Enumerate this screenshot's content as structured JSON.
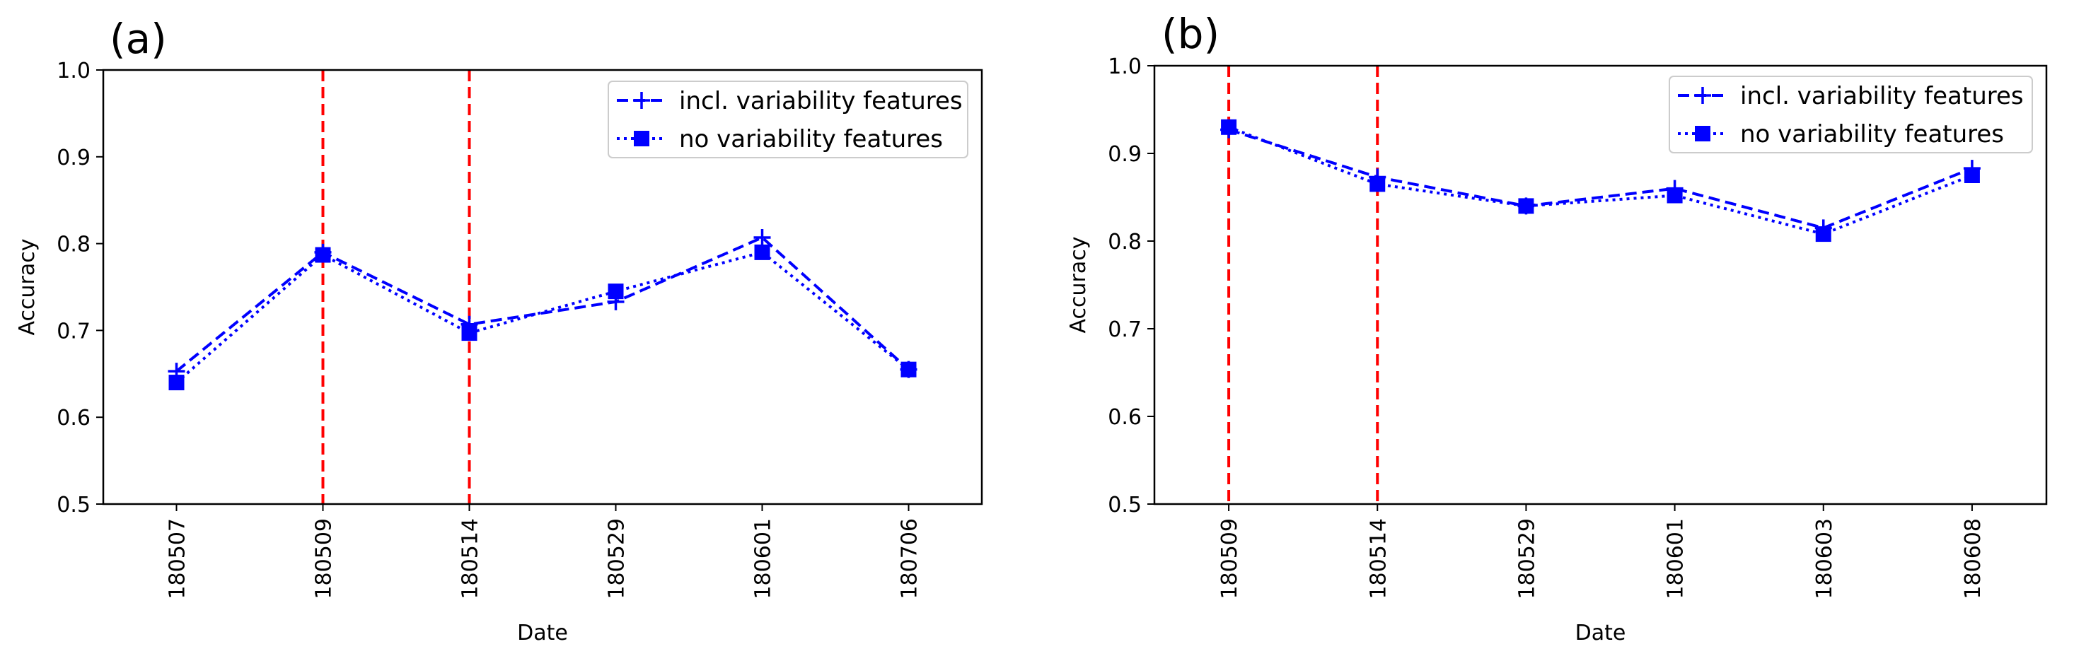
{
  "colors": {
    "series": "#0000ff",
    "vline": "#ff0000",
    "axis": "#000000",
    "background": "#ffffff"
  },
  "chart_data": [
    {
      "type": "line",
      "panel_label": "(a)",
      "xlabel": "Date",
      "ylabel": "Accuracy",
      "ylim": [
        0.5,
        1.0
      ],
      "yticks": [
        "0.5",
        "0.6",
        "0.7",
        "0.8",
        "0.9",
        "1.0"
      ],
      "categories": [
        "180507",
        "180509",
        "180514",
        "180529",
        "180601",
        "180706"
      ],
      "vertical_lines_at": [
        "180509",
        "180514"
      ],
      "legend_position": "top-right",
      "series": [
        {
          "name": "incl. variability features",
          "linestyle": "dashed",
          "marker": "plus",
          "values": [
            0.653,
            0.79,
            0.707,
            0.733,
            0.807,
            0.655
          ]
        },
        {
          "name": "no variability features",
          "linestyle": "dotted",
          "marker": "square",
          "values": [
            0.64,
            0.787,
            0.697,
            0.745,
            0.79,
            0.655
          ]
        }
      ]
    },
    {
      "type": "line",
      "panel_label": "(b)",
      "xlabel": "Date",
      "ylabel": "Accuracy",
      "ylim": [
        0.5,
        1.0
      ],
      "yticks": [
        "0.5",
        "0.6",
        "0.7",
        "0.8",
        "0.9",
        "1.0"
      ],
      "categories": [
        "180509",
        "180514",
        "180529",
        "180601",
        "180603",
        "180608"
      ],
      "vertical_lines_at": [
        "180509",
        "180514"
      ],
      "legend_position": "top-right",
      "series": [
        {
          "name": "incl. variability features",
          "linestyle": "dashed",
          "marker": "plus",
          "values": [
            0.927,
            0.873,
            0.84,
            0.86,
            0.815,
            0.883
          ]
        },
        {
          "name": "no variability features",
          "linestyle": "dotted",
          "marker": "square",
          "values": [
            0.93,
            0.865,
            0.84,
            0.852,
            0.808,
            0.875
          ]
        }
      ]
    }
  ]
}
